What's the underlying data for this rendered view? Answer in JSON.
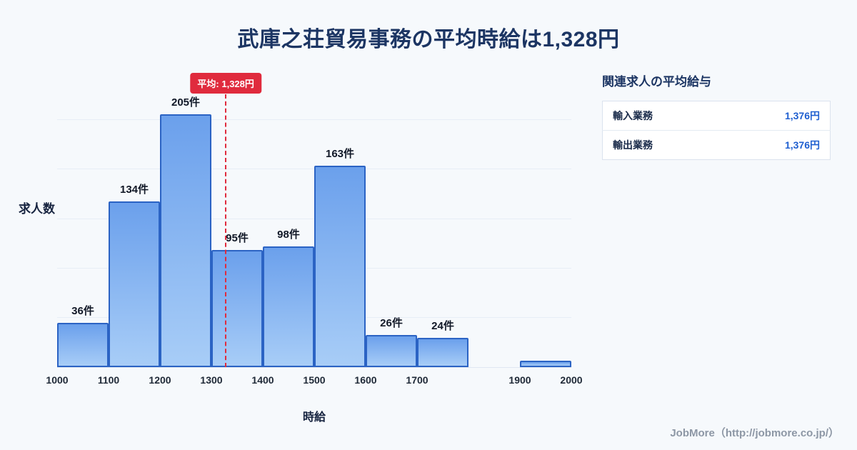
{
  "page": {
    "title": "武庫之荘貿易事務の平均時給は1,328円",
    "footer": "JobMore（http://jobmore.co.jp/）"
  },
  "chart_data": {
    "type": "bar",
    "title": "武庫之荘貿易事務の平均時給は1,328円",
    "xlabel": "時給",
    "ylabel": "求人数",
    "x_range": [
      1000,
      2000
    ],
    "ylim": [
      0,
      240
    ],
    "grid": true,
    "x_ticks": [
      1000,
      1100,
      1200,
      1300,
      1400,
      1500,
      1600,
      1700,
      1900,
      2000
    ],
    "bars": [
      {
        "from": 1000,
        "to": 1100,
        "count": 36,
        "label": "36件"
      },
      {
        "from": 1100,
        "to": 1200,
        "count": 134,
        "label": "134件"
      },
      {
        "from": 1200,
        "to": 1300,
        "count": 205,
        "label": "205件"
      },
      {
        "from": 1300,
        "to": 1400,
        "count": 95,
        "label": "95件"
      },
      {
        "from": 1400,
        "to": 1500,
        "count": 98,
        "label": "98件"
      },
      {
        "from": 1500,
        "to": 1600,
        "count": 163,
        "label": "163件"
      },
      {
        "from": 1600,
        "to": 1700,
        "count": 26,
        "label": "26件"
      },
      {
        "from": 1700,
        "to": 1800,
        "count": 24,
        "label": "24件"
      },
      {
        "from": 1900,
        "to": 2000,
        "count": 5,
        "label": ""
      }
    ],
    "mean": {
      "value": 1328,
      "label": "平均: 1,328円"
    }
  },
  "side_panel": {
    "heading": "関連求人の平均給与",
    "rows": [
      {
        "label": "輸入業務",
        "value": "1,376円"
      },
      {
        "label": "輸出業務",
        "value": "1,376円"
      }
    ]
  },
  "colors": {
    "bg": "#f6f9fc",
    "title_navy": "#1c3563",
    "bar_top": "#6ba0ec",
    "bar_bottom": "#a8cdf7",
    "bar_border": "#2b63c4",
    "mean_red": "#e02b3d",
    "value_blue": "#1f5fd0"
  }
}
